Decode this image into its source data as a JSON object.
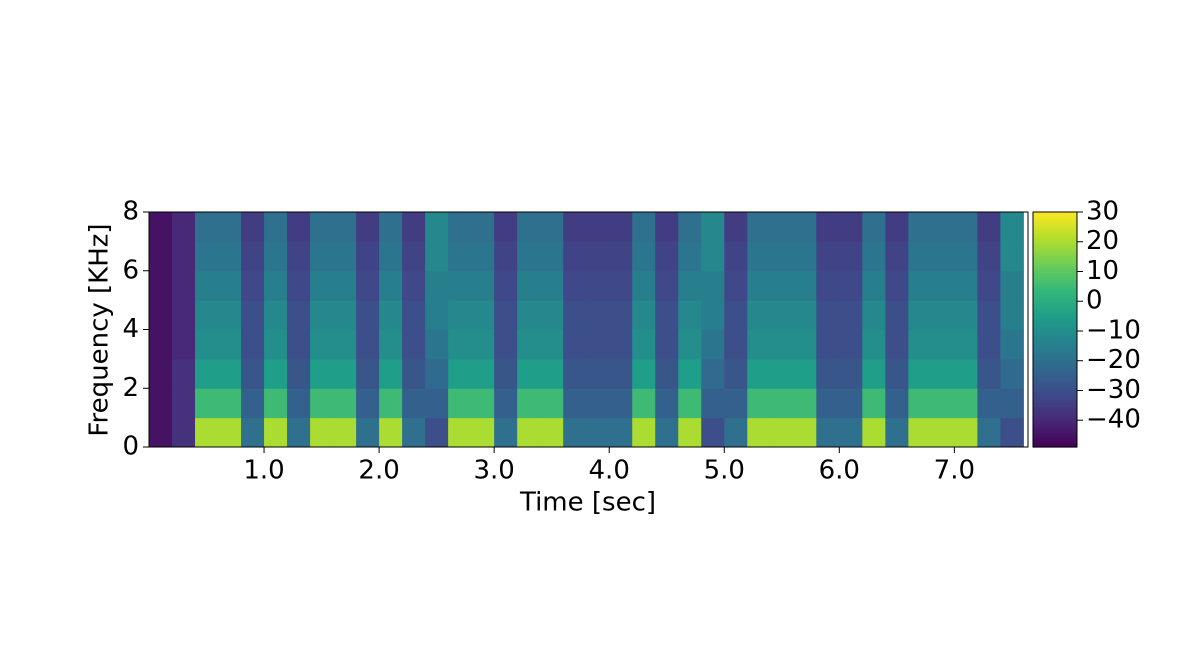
{
  "chart_data": {
    "type": "heatmap",
    "xlabel": "Time [sec]",
    "ylabel": "Frequency [KHz]",
    "x": [
      0,
      0.2,
      0.4,
      0.6,
      0.8,
      1.0,
      1.2,
      1.4,
      1.6,
      1.8,
      2.0,
      2.2,
      2.4,
      2.6,
      2.8,
      3.0,
      3.2,
      3.4,
      3.6,
      3.8,
      4.0,
      4.2,
      4.4,
      4.6,
      4.8,
      5.0,
      5.2,
      5.4,
      5.6,
      5.8,
      6.0,
      6.2,
      6.4,
      6.6,
      6.8,
      7.0,
      7.2,
      7.4,
      7.6
    ],
    "y": [
      0,
      1,
      2,
      3,
      4,
      5,
      6,
      7,
      8
    ],
    "z": [
      [
        -45,
        -38,
        20,
        20,
        -20,
        20,
        -20,
        20,
        20,
        -20,
        20,
        -20,
        -30,
        20,
        20,
        -20,
        20,
        20,
        -20,
        -20,
        -20,
        20,
        -20,
        20,
        -30,
        -20,
        20,
        20,
        20,
        -20,
        -20,
        20,
        -20,
        20,
        20,
        20,
        -20,
        -30
      ],
      [
        -45,
        -38,
        5,
        5,
        -25,
        5,
        -25,
        5,
        5,
        -25,
        5,
        -25,
        -25,
        5,
        5,
        -25,
        5,
        5,
        -25,
        -25,
        -25,
        5,
        -25,
        5,
        -25,
        -25,
        5,
        5,
        5,
        -25,
        -25,
        5,
        -25,
        5,
        5,
        5,
        -25,
        -25
      ],
      [
        -45,
        -38,
        -5,
        -5,
        -28,
        -5,
        -28,
        -5,
        -5,
        -28,
        -5,
        -28,
        -22,
        -5,
        -5,
        -28,
        -5,
        -5,
        -28,
        -28,
        -28,
        -5,
        -28,
        -5,
        -22,
        -28,
        -5,
        -5,
        -5,
        -28,
        -28,
        -5,
        -28,
        -5,
        -5,
        -5,
        -28,
        -22
      ],
      [
        -45,
        -40,
        -10,
        -10,
        -30,
        -10,
        -30,
        -10,
        -10,
        -30,
        -10,
        -30,
        -18,
        -10,
        -10,
        -30,
        -10,
        -10,
        -30,
        -30,
        -30,
        -10,
        -30,
        -10,
        -18,
        -30,
        -10,
        -10,
        -10,
        -30,
        -30,
        -10,
        -30,
        -10,
        -10,
        -10,
        -30,
        -18
      ],
      [
        -45,
        -40,
        -12,
        -12,
        -30,
        -12,
        -30,
        -12,
        -12,
        -30,
        -12,
        -30,
        -15,
        -12,
        -12,
        -30,
        -12,
        -12,
        -30,
        -30,
        -30,
        -12,
        -30,
        -12,
        -15,
        -30,
        -12,
        -12,
        -12,
        -30,
        -30,
        -12,
        -30,
        -12,
        -12,
        -12,
        -30,
        -15
      ],
      [
        -45,
        -40,
        -15,
        -15,
        -32,
        -15,
        -32,
        -15,
        -15,
        -32,
        -15,
        -32,
        -15,
        -15,
        -15,
        -32,
        -15,
        -15,
        -32,
        -32,
        -32,
        -15,
        -32,
        -15,
        -15,
        -32,
        -15,
        -15,
        -15,
        -32,
        -32,
        -15,
        -32,
        -15,
        -15,
        -15,
        -32,
        -15
      ],
      [
        -45,
        -40,
        -18,
        -18,
        -33,
        -18,
        -33,
        -18,
        -18,
        -33,
        -18,
        -33,
        -12,
        -18,
        -18,
        -33,
        -18,
        -18,
        -33,
        -33,
        -33,
        -18,
        -33,
        -18,
        -12,
        -33,
        -18,
        -18,
        -18,
        -33,
        -33,
        -18,
        -33,
        -18,
        -18,
        -18,
        -33,
        -12
      ],
      [
        -45,
        -40,
        -20,
        -20,
        -35,
        -20,
        -35,
        -20,
        -20,
        -35,
        -20,
        -35,
        -12,
        -20,
        -20,
        -35,
        -20,
        -20,
        -35,
        -35,
        -35,
        -20,
        -35,
        -20,
        -12,
        -35,
        -20,
        -20,
        -20,
        -35,
        -35,
        -20,
        -35,
        -20,
        -20,
        -20,
        -35,
        -12
      ]
    ],
    "colormap": "viridis",
    "xlim": [
      0,
      7.64
    ],
    "ylim": [
      0,
      8
    ],
    "clim": [
      -49,
      30
    ],
    "xticks": [
      {
        "value": 1,
        "label": "1.0"
      },
      {
        "value": 2,
        "label": "2.0"
      },
      {
        "value": 3,
        "label": "3.0"
      },
      {
        "value": 4,
        "label": "4.0"
      },
      {
        "value": 5,
        "label": "5.0"
      },
      {
        "value": 6,
        "label": "6.0"
      },
      {
        "value": 7,
        "label": "7.0"
      }
    ],
    "yticks": [
      0,
      2,
      4,
      6,
      8
    ],
    "cticks": [
      {
        "value": 30,
        "label": "30"
      },
      {
        "value": 20,
        "label": "20"
      },
      {
        "value": 10,
        "label": "10"
      },
      {
        "value": 0,
        "label": "0"
      },
      {
        "value": -10,
        "label": "−10"
      },
      {
        "value": -20,
        "label": "−20"
      },
      {
        "value": -30,
        "label": "−30"
      },
      {
        "value": -40,
        "label": "−40"
      }
    ]
  }
}
